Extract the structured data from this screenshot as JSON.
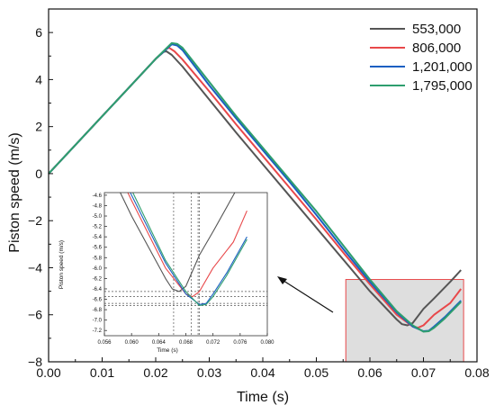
{
  "chart_data": [
    {
      "type": "line",
      "xlabel": "Time (s)",
      "ylabel": "Piston speed (m/s)",
      "xlim": [
        0.0,
        0.08
      ],
      "ylim": [
        -8,
        7
      ],
      "xticks": [
        0.0,
        0.01,
        0.02,
        0.03,
        0.04,
        0.05,
        0.06,
        0.07,
        0.08
      ],
      "xtick_labels": [
        "0.00",
        "0.01",
        "0.02",
        "0.03",
        "0.04",
        "0.05",
        "0.06",
        "0.07",
        "0.08"
      ],
      "yticks": [
        -8,
        -6,
        -4,
        -2,
        0,
        2,
        4,
        6
      ],
      "ytick_labels": [
        "−8",
        "−6",
        "−4",
        "−2",
        "0",
        "2",
        "4",
        "6"
      ],
      "grid": false,
      "legend_position": "top-right",
      "series": [
        {
          "name": "553,000",
          "color": "#555555",
          "x": [
            0,
            0.005,
            0.01,
            0.015,
            0.02,
            0.0215,
            0.022,
            0.023,
            0.025,
            0.03,
            0.035,
            0.04,
            0.045,
            0.05,
            0.055,
            0.06,
            0.065,
            0.066,
            0.067,
            0.068,
            0.07,
            0.072,
            0.075,
            0.077
          ],
          "y": [
            0,
            1.22,
            2.44,
            3.66,
            4.88,
            5.18,
            5.2,
            5.05,
            4.55,
            3.15,
            1.75,
            0.4,
            -0.95,
            -2.3,
            -3.65,
            -5.0,
            -6.2,
            -6.4,
            -6.45,
            -6.35,
            -5.75,
            -5.3,
            -4.6,
            -4.1
          ]
        },
        {
          "name": "806,000",
          "color": "#e8484a",
          "x": [
            0,
            0.005,
            0.01,
            0.015,
            0.02,
            0.022,
            0.0225,
            0.0235,
            0.025,
            0.03,
            0.035,
            0.04,
            0.045,
            0.05,
            0.055,
            0.06,
            0.065,
            0.068,
            0.069,
            0.07,
            0.072,
            0.075,
            0.077
          ],
          "y": [
            0,
            1.22,
            2.44,
            3.66,
            4.88,
            5.3,
            5.35,
            5.2,
            4.85,
            3.5,
            2.1,
            0.75,
            -0.6,
            -1.95,
            -3.35,
            -4.7,
            -6.0,
            -6.5,
            -6.55,
            -6.45,
            -6.0,
            -5.5,
            -4.9
          ]
        },
        {
          "name": "1,201,000",
          "color": "#1a5fc2",
          "x": [
            0,
            0.005,
            0.01,
            0.015,
            0.02,
            0.023,
            0.024,
            0.025,
            0.03,
            0.035,
            0.04,
            0.045,
            0.05,
            0.055,
            0.06,
            0.065,
            0.068,
            0.07,
            0.071,
            0.072,
            0.074,
            0.077
          ],
          "y": [
            0,
            1.22,
            2.44,
            3.66,
            4.88,
            5.5,
            5.45,
            5.25,
            3.75,
            2.35,
            1.0,
            -0.35,
            -1.75,
            -3.2,
            -4.6,
            -5.9,
            -6.5,
            -6.7,
            -6.68,
            -6.5,
            -6.1,
            -5.4
          ]
        },
        {
          "name": "1,795,000",
          "color": "#2e9e6e",
          "x": [
            0,
            0.005,
            0.01,
            0.015,
            0.02,
            0.023,
            0.024,
            0.025,
            0.03,
            0.035,
            0.04,
            0.045,
            0.05,
            0.055,
            0.06,
            0.065,
            0.068,
            0.07,
            0.071,
            0.072,
            0.074,
            0.077
          ],
          "y": [
            0,
            1.22,
            2.44,
            3.66,
            4.88,
            5.55,
            5.52,
            5.35,
            3.9,
            2.45,
            1.1,
            -0.25,
            -1.6,
            -3.05,
            -4.5,
            -5.85,
            -6.45,
            -6.72,
            -6.7,
            -6.55,
            -6.15,
            -5.45
          ]
        }
      ],
      "highlight_box": {
        "x": [
          0.0555,
          0.0775
        ],
        "y": [
          -8.0,
          -4.5
        ]
      }
    },
    {
      "type": "line",
      "role": "inset",
      "xlabel": "Time (s)",
      "ylabel": "Piston speed (m/s)",
      "xlim": [
        0.056,
        0.08
      ],
      "ylim": [
        -7.3,
        -4.55
      ],
      "xticks": [
        0.056,
        0.06,
        0.064,
        0.068,
        0.072,
        0.076,
        0.08
      ],
      "xtick_labels": [
        "0.056",
        "0.060",
        "0.064",
        "0.068",
        "0.072",
        "0.076",
        "0.080"
      ],
      "yticks": [
        -4.6,
        -4.8,
        -5.0,
        -5.2,
        -5.4,
        -5.6,
        -5.8,
        -6.0,
        -6.2,
        -6.4,
        -6.6,
        -6.8,
        -7.0,
        -7.2
      ],
      "ytick_labels": [
        "-4.6",
        "-4.8",
        "-5.0",
        "-5.2",
        "-5.4",
        "-5.6",
        "-5.8",
        "-6.0",
        "-6.2",
        "-6.4",
        "-6.6",
        "-6.8",
        "-7.0",
        "-7.2"
      ],
      "reference_x": [
        0.0662,
        0.0688,
        0.0698,
        0.07
      ],
      "reference_y": [
        -6.45,
        -6.55,
        -6.68,
        -6.72
      ]
    }
  ]
}
